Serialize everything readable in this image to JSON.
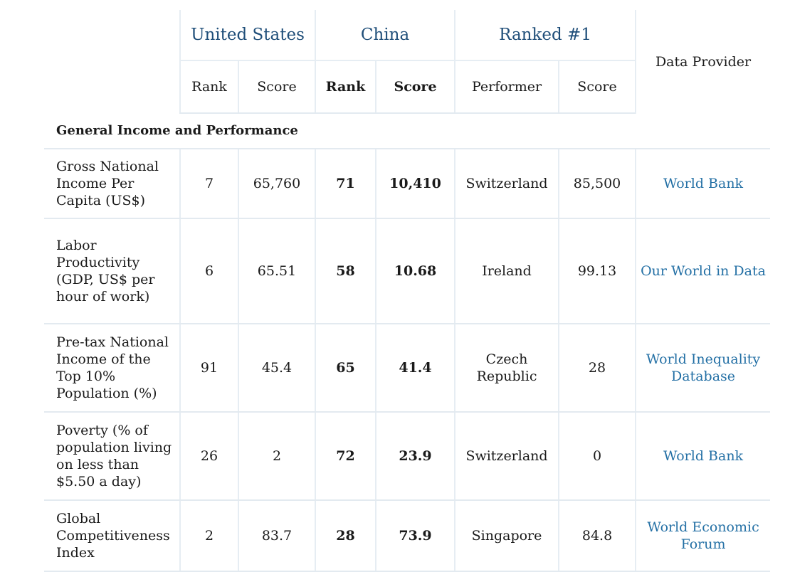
{
  "header": {
    "groups": [
      "United States",
      "China",
      "Ranked #1"
    ],
    "provider": "Data Provider",
    "subheaders": [
      "Rank",
      "Score",
      "Rank",
      "Score",
      "Performer",
      "Score"
    ]
  },
  "section": "General Income and Performance",
  "rows": [
    {
      "label": "Gross National Income Per Capita (US$)",
      "us_rank": "7",
      "us_score": "65,760",
      "cn_rank": "71",
      "cn_score": "10,410",
      "performer": "Switzerland",
      "top_score": "85,500",
      "provider": "World Bank"
    },
    {
      "label": "Labor Productivity (GDP, US$ per hour of work)",
      "us_rank": "6",
      "us_score": "65.51",
      "cn_rank": "58",
      "cn_score": "10.68",
      "performer": "Ireland",
      "top_score": "99.13",
      "provider": "Our World in Data"
    },
    {
      "label": "Pre-tax National Income of the Top 10% Population (%)",
      "us_rank": "91",
      "us_score": "45.4",
      "cn_rank": "65",
      "cn_score": "41.4",
      "performer": "Czech Republic",
      "top_score": "28",
      "provider": "World Inequality Database"
    },
    {
      "label": "Poverty (% of population living on less than $5.50 a day)",
      "us_rank": "26",
      "us_score": "2",
      "cn_rank": "72",
      "cn_score": "23.9",
      "performer": "Switzerland",
      "top_score": "0",
      "provider": "World Bank"
    },
    {
      "label": "Global Competitiveness Index",
      "us_rank": "2",
      "us_score": "83.7",
      "cn_rank": "28",
      "cn_score": "73.9",
      "performer": "Singapore",
      "top_score": "84.8",
      "provider": "World Economic Forum"
    }
  ],
  "colors": {
    "group_header": "#1f4e79",
    "provider_link": "#2470a5",
    "rule": "#e3eaf0"
  }
}
